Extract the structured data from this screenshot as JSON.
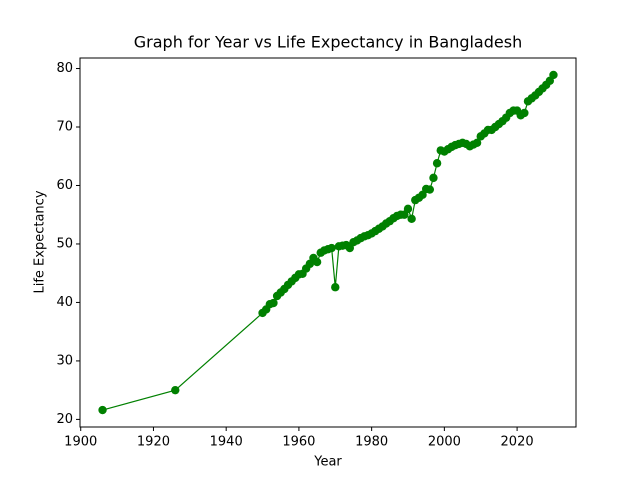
{
  "chart_data": {
    "type": "line",
    "title": "Graph for Year vs Life Expectancy in Bangladesh",
    "x_label": "Year",
    "y_label": "Life Expectancy",
    "x": [
      1906,
      1926,
      1950,
      1951,
      1952,
      1953,
      1954,
      1955,
      1956,
      1957,
      1958,
      1959,
      1960,
      1961,
      1962,
      1963,
      1964,
      1965,
      1966,
      1967,
      1968,
      1969,
      1970,
      1971,
      1972,
      1973,
      1974,
      1975,
      1976,
      1977,
      1978,
      1979,
      1980,
      1981,
      1982,
      1983,
      1984,
      1985,
      1986,
      1987,
      1988,
      1989,
      1990,
      1991,
      1992,
      1993,
      1994,
      1995,
      1996,
      1997,
      1998,
      1999,
      2000,
      2001,
      2002,
      2003,
      2004,
      2005,
      2006,
      2007,
      2008,
      2009,
      2010,
      2011,
      2012,
      2013,
      2014,
      2015,
      2016,
      2017,
      2018,
      2019,
      2020,
      2021,
      2022,
      2023,
      2024,
      2025,
      2026,
      2027,
      2028,
      2029,
      2030
    ],
    "series": [
      {
        "color": "#008000",
        "values": [
          21.6,
          25.0,
          38.2,
          38.8,
          39.7,
          39.9,
          41.1,
          41.7,
          42.3,
          43.0,
          43.6,
          44.2,
          44.8,
          44.9,
          45.8,
          46.6,
          47.6,
          46.9,
          48.5,
          48.9,
          49.1,
          49.3,
          42.6,
          49.6,
          49.7,
          49.8,
          49.3,
          50.3,
          50.6,
          51.0,
          51.3,
          51.5,
          51.8,
          52.2,
          52.6,
          53.0,
          53.5,
          53.9,
          54.4,
          54.8,
          55.0,
          55.0,
          56.0,
          54.3,
          57.5,
          57.9,
          58.4,
          59.4,
          59.3,
          61.3,
          63.8,
          66.0,
          65.8,
          66.2,
          66.6,
          66.9,
          67.1,
          67.3,
          67.1,
          66.7,
          67.0,
          67.3,
          68.4,
          68.9,
          69.5,
          69.5,
          70.0,
          70.5,
          71.0,
          71.6,
          72.4,
          72.8,
          72.8,
          72.0,
          72.4,
          74.4,
          74.9,
          75.4,
          76.0,
          76.6,
          77.2,
          77.9,
          78.9
        ]
      }
    ],
    "xlim": [
      1899.8,
      2036.2
    ],
    "xticks": [
      1900,
      1920,
      1940,
      1960,
      1980,
      2000,
      2020
    ],
    "ylim": [
      18.7,
      81.8
    ],
    "yticks": [
      20,
      30,
      40,
      50,
      60,
      70,
      80
    ]
  }
}
